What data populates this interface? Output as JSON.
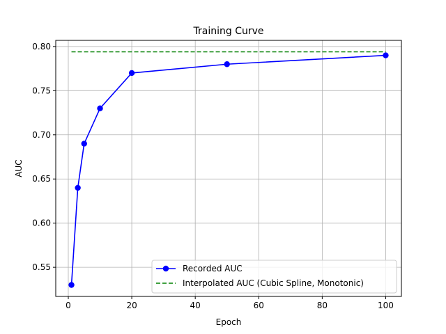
{
  "chart_data": {
    "type": "line",
    "title": "Training Curve",
    "xlabel": "Epoch",
    "ylabel": "AUC",
    "xlim": [
      -3.95,
      104.95
    ],
    "ylim": [
      0.517,
      0.807
    ],
    "xticks": [
      0,
      20,
      40,
      60,
      80,
      100
    ],
    "xtick_labels": [
      "0",
      "20",
      "40",
      "60",
      "80",
      "100"
    ],
    "yticks": [
      0.55,
      0.6,
      0.65,
      0.7,
      0.75,
      0.8
    ],
    "ytick_labels": [
      "0.55",
      "0.60",
      "0.65",
      "0.70",
      "0.75",
      "0.80"
    ],
    "grid": true,
    "legend_position": "lower-right",
    "series": [
      {
        "name": "Recorded AUC",
        "style": "solid-markers",
        "color": "#0000ff",
        "x": [
          1,
          3,
          5,
          10,
          20,
          50,
          100
        ],
        "values": [
          0.53,
          0.64,
          0.69,
          0.73,
          0.77,
          0.78,
          0.79
        ]
      },
      {
        "name": "Interpolated AUC (Cubic Spline, Monotonic)",
        "style": "dashed",
        "color": "#008000",
        "x": [
          1,
          100
        ],
        "values": [
          0.794,
          0.794
        ]
      }
    ]
  }
}
